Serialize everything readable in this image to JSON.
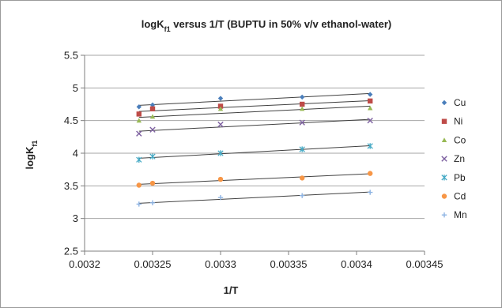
{
  "chart_data": {
    "type": "scatter",
    "title": {
      "main": "logK",
      "sub": "f1",
      "rest": " versus 1/T (BUPTU in 50% v/v ethanol-water)"
    },
    "xlabel": "1/T",
    "ylabel": {
      "main": "logK",
      "sub": "f1"
    },
    "xlim": [
      0.0032,
      0.00345
    ],
    "ylim": [
      2.5,
      5.5
    ],
    "xticks": [
      "0.0032",
      "0.00325",
      "0.0033",
      "0.00335",
      "0.0034",
      "0.00345"
    ],
    "yticks": [
      "2.5",
      "3",
      "3.5",
      "4",
      "4.5",
      "5",
      "5.5"
    ],
    "grid": "horizontal",
    "legend": "right",
    "trendlines": "linear",
    "x": [
      0.00324,
      0.00325,
      0.0033,
      0.00336,
      0.00341
    ],
    "series": [
      {
        "name": "Cu",
        "marker": "diamond",
        "color": "#4a7ebb",
        "values": [
          4.71,
          4.74,
          4.84,
          4.86,
          4.9
        ]
      },
      {
        "name": "Ni",
        "marker": "square",
        "color": "#be4b48",
        "values": [
          4.6,
          4.68,
          4.72,
          4.75,
          4.8
        ]
      },
      {
        "name": "Co",
        "marker": "triangle",
        "color": "#98b954",
        "values": [
          4.5,
          4.56,
          4.68,
          4.68,
          4.69
        ]
      },
      {
        "name": "Zn",
        "marker": "x",
        "color": "#7d60a0",
        "values": [
          4.3,
          4.36,
          4.44,
          4.47,
          4.5
        ]
      },
      {
        "name": "Pb",
        "marker": "star",
        "color": "#46aac5",
        "values": [
          3.9,
          3.95,
          4.0,
          4.06,
          4.11
        ]
      },
      {
        "name": "Cd",
        "marker": "circle",
        "color": "#f79646",
        "values": [
          3.51,
          3.54,
          3.6,
          3.62,
          3.69
        ]
      },
      {
        "name": "Mn",
        "marker": "plus",
        "color": "#8eb4e3",
        "values": [
          3.22,
          3.24,
          3.32,
          3.35,
          3.4
        ]
      }
    ]
  }
}
